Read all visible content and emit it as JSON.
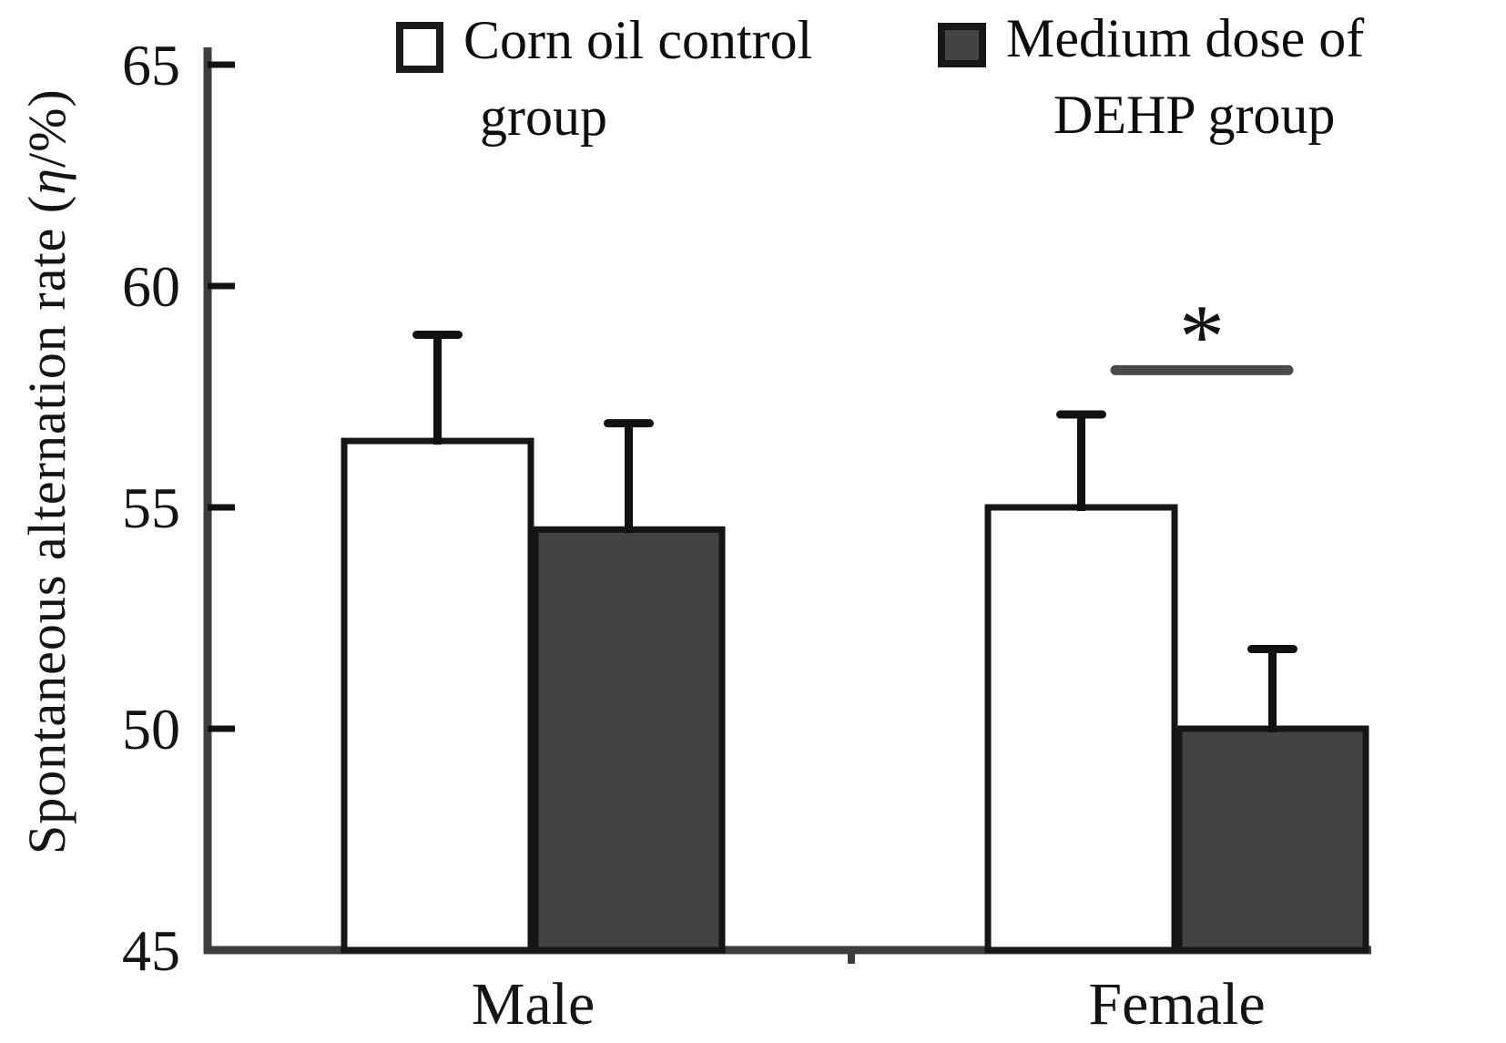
{
  "chart_data": {
    "type": "bar",
    "title": "",
    "xlabel": "",
    "ylabel": "Spontaneous alternation rate (η/%)",
    "categories": [
      "Male",
      "Female"
    ],
    "series": [
      {
        "name": "Corn oil control group",
        "color": "#ffffff",
        "edge_color": "#161616",
        "values": [
          56.5,
          55.0
        ],
        "errors_up": [
          2.4,
          2.1
        ]
      },
      {
        "name": "Medium dose of DEHP group",
        "color": "#434343",
        "edge_color": "#161616",
        "values": [
          54.5,
          50.0
        ],
        "errors_up": [
          2.4,
          1.8
        ]
      }
    ],
    "ylim": [
      45,
      65.3
    ],
    "yticks": [
      45,
      50,
      55,
      60,
      65
    ],
    "grid": false,
    "legend_position": "top",
    "significance": {
      "text": "*",
      "category": "Female",
      "line_y": 58.1
    }
  },
  "y_axis_label": {
    "prefix": "Spontaneous alternation rate (",
    "symbol": "η",
    "suffix": "/%)"
  },
  "legend": {
    "items": [
      {
        "name": "Corn oil control group",
        "lines": [
          "Corn oil control",
          "group"
        ],
        "swatch_color": "#ffffff"
      },
      {
        "name": "Medium dose of DEHP group",
        "lines": [
          "Medium dose of",
          "DEHP group"
        ],
        "swatch_color": "#434343"
      }
    ]
  },
  "colors": {
    "axis": "#3d3d3d",
    "text": "#141414",
    "significance_line": "#4a4a4a"
  }
}
